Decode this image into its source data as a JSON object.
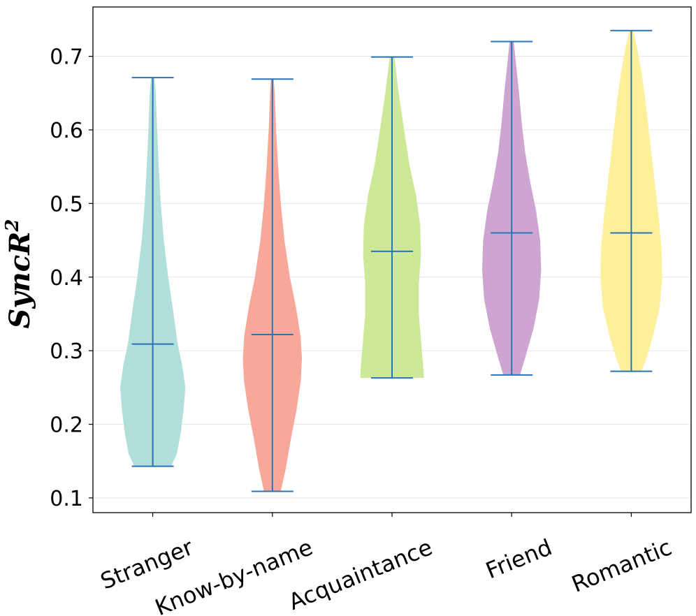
{
  "chart_data": {
    "type": "violin",
    "title": "",
    "xlabel": "",
    "ylabel": "SyncR",
    "ylabel_superscript": "2",
    "ylim": [
      0.08,
      0.767
    ],
    "yticks": [
      0.1,
      0.2,
      0.3,
      0.4,
      0.5,
      0.6,
      0.7
    ],
    "ytick_labels": [
      "0.1",
      "0.2",
      "0.3",
      "0.4",
      "0.5",
      "0.6",
      "0.7"
    ],
    "grid": true,
    "series": [
      {
        "name": "Stranger",
        "color": "#b0e0d9",
        "min": 0.143,
        "max": 0.671,
        "median": 0.309,
        "density": [
          [
            0.143,
            0.55
          ],
          [
            0.16,
            0.72
          ],
          [
            0.19,
            0.84
          ],
          [
            0.22,
            0.92
          ],
          [
            0.25,
            0.97
          ],
          [
            0.28,
            0.88
          ],
          [
            0.31,
            0.74
          ],
          [
            0.35,
            0.62
          ],
          [
            0.4,
            0.46
          ],
          [
            0.45,
            0.33
          ],
          [
            0.5,
            0.24
          ],
          [
            0.55,
            0.18
          ],
          [
            0.6,
            0.13
          ],
          [
            0.65,
            0.09
          ],
          [
            0.671,
            0.05
          ]
        ]
      },
      {
        "name": "Know-by-name",
        "color": "#f8a89b",
        "min": 0.109,
        "max": 0.669,
        "median": 0.322,
        "density": [
          [
            0.109,
            0.25
          ],
          [
            0.14,
            0.4
          ],
          [
            0.18,
            0.55
          ],
          [
            0.22,
            0.72
          ],
          [
            0.26,
            0.85
          ],
          [
            0.29,
            0.88
          ],
          [
            0.32,
            0.84
          ],
          [
            0.36,
            0.7
          ],
          [
            0.4,
            0.52
          ],
          [
            0.45,
            0.36
          ],
          [
            0.5,
            0.25
          ],
          [
            0.55,
            0.17
          ],
          [
            0.6,
            0.11
          ],
          [
            0.65,
            0.07
          ],
          [
            0.669,
            0.04
          ]
        ]
      },
      {
        "name": "Acquaintance",
        "color": "#cde897",
        "min": 0.263,
        "max": 0.699,
        "median": 0.435,
        "density": [
          [
            0.263,
            0.95
          ],
          [
            0.28,
            0.93
          ],
          [
            0.31,
            0.87
          ],
          [
            0.35,
            0.8
          ],
          [
            0.39,
            0.8
          ],
          [
            0.43,
            0.86
          ],
          [
            0.47,
            0.84
          ],
          [
            0.51,
            0.72
          ],
          [
            0.55,
            0.53
          ],
          [
            0.6,
            0.36
          ],
          [
            0.65,
            0.2
          ],
          [
            0.68,
            0.12
          ],
          [
            0.699,
            0.07
          ]
        ]
      },
      {
        "name": "Friend",
        "color": "#cea4d1",
        "min": 0.267,
        "max": 0.72,
        "median": 0.46,
        "density": [
          [
            0.267,
            0.25
          ],
          [
            0.29,
            0.4
          ],
          [
            0.33,
            0.65
          ],
          [
            0.37,
            0.82
          ],
          [
            0.41,
            0.88
          ],
          [
            0.45,
            0.85
          ],
          [
            0.49,
            0.73
          ],
          [
            0.53,
            0.55
          ],
          [
            0.57,
            0.4
          ],
          [
            0.61,
            0.3
          ],
          [
            0.65,
            0.22
          ],
          [
            0.69,
            0.13
          ],
          [
            0.72,
            0.06
          ]
        ]
      },
      {
        "name": "Romantic",
        "color": "#fdf09a",
        "min": 0.272,
        "max": 0.735,
        "median": 0.46,
        "density": [
          [
            0.272,
            0.3
          ],
          [
            0.29,
            0.45
          ],
          [
            0.32,
            0.65
          ],
          [
            0.36,
            0.85
          ],
          [
            0.4,
            0.92
          ],
          [
            0.44,
            0.9
          ],
          [
            0.48,
            0.82
          ],
          [
            0.52,
            0.72
          ],
          [
            0.56,
            0.62
          ],
          [
            0.6,
            0.52
          ],
          [
            0.64,
            0.42
          ],
          [
            0.68,
            0.3
          ],
          [
            0.71,
            0.18
          ],
          [
            0.735,
            0.06
          ]
        ]
      }
    ],
    "line_color": "#2a73b8"
  }
}
